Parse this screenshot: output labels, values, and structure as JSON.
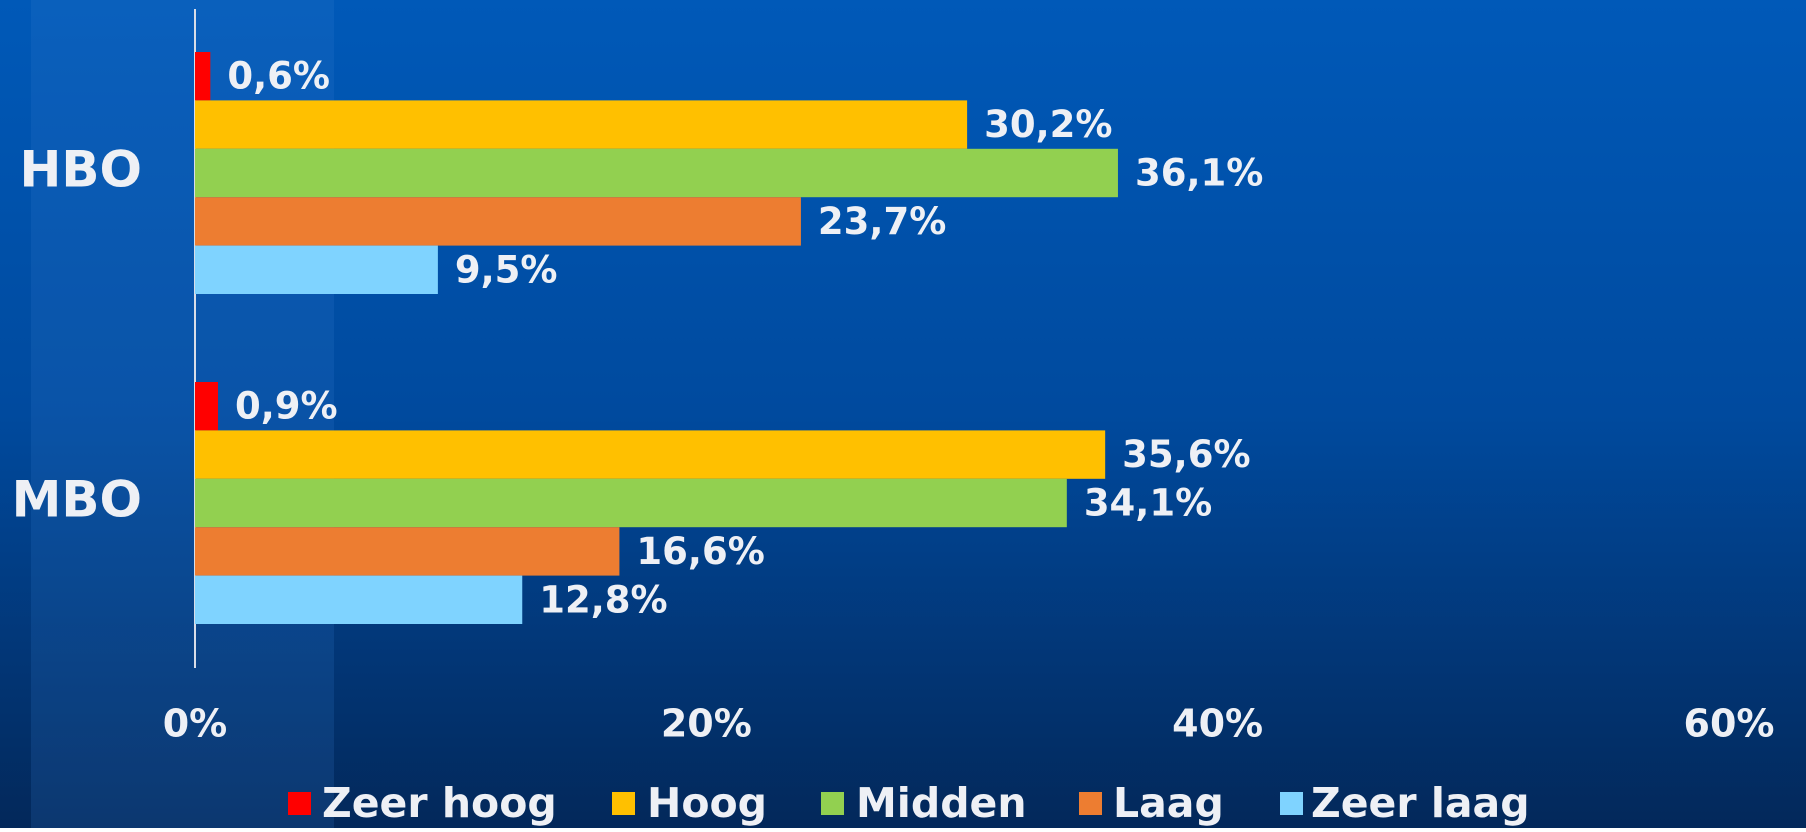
{
  "chart_data": {
    "type": "bar",
    "orientation": "horizontal",
    "categories": [
      "HBO",
      "MBO"
    ],
    "series": [
      {
        "name": "Zeer hoog",
        "color": "#ff0000",
        "values": [
          0.6,
          0.9
        ],
        "value_labels": [
          "0,6%",
          "0,9%"
        ]
      },
      {
        "name": "Hoog",
        "color": "#ffc000",
        "values": [
          30.2,
          35.6
        ],
        "value_labels": [
          "30,2%",
          "35,6%"
        ]
      },
      {
        "name": "Midden",
        "color": "#92d050",
        "values": [
          36.1,
          34.1
        ],
        "value_labels": [
          "36,1%",
          "34,1%"
        ]
      },
      {
        "name": "Laag",
        "color": "#ed7d31",
        "values": [
          23.7,
          16.6
        ],
        "value_labels": [
          "23,7%",
          "16,6%"
        ]
      },
      {
        "name": "Zeer laag",
        "color": "#7fd3ff",
        "values": [
          9.5,
          12.8
        ],
        "value_labels": [
          "9,5%",
          "12,8%"
        ]
      }
    ],
    "xlim": [
      0,
      60
    ],
    "xticks": [
      {
        "value": 0,
        "label": "0%"
      },
      {
        "value": 20,
        "label": "20%"
      },
      {
        "value": 40,
        "label": "40%"
      },
      {
        "value": 60,
        "label": "60%"
      }
    ],
    "legend": "bottom"
  }
}
